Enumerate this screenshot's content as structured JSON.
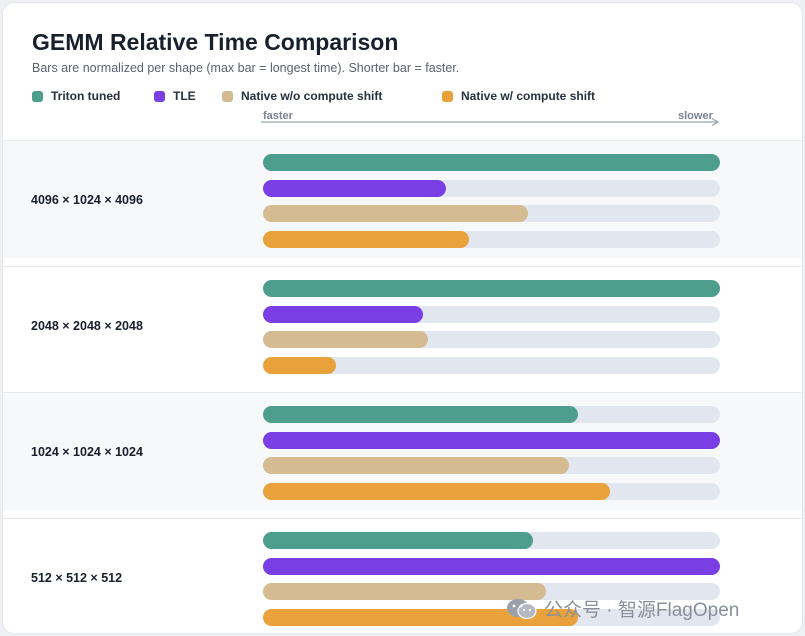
{
  "chart_data": {
    "type": "bar",
    "orientation": "horizontal",
    "title": "GEMM Relative Time Comparison",
    "subtitle": "Bars are normalized per shape (max bar = longest time). Shorter bar = faster.",
    "axis": {
      "left_label": "faster",
      "right_label": "slower"
    },
    "xlim": [
      0,
      1
    ],
    "legend_placement": "top-left",
    "categories": [
      "4096 × 1024 × 4096",
      "2048 × 2048 × 2048",
      "1024 × 1024 × 1024",
      "512 × 512 × 512"
    ],
    "series": [
      {
        "name": "Triton tuned",
        "color": "#4e9e8e",
        "values": [
          1.0,
          1.0,
          0.69,
          0.59
        ]
      },
      {
        "name": "TLE",
        "color": "#7a3fe4",
        "values": [
          0.4,
          0.35,
          1.0,
          1.0
        ]
      },
      {
        "name": "Native w/o compute shift",
        "color": "#d5bb92",
        "values": [
          0.58,
          0.36,
          0.67,
          0.62
        ]
      },
      {
        "name": "Native w/ compute shift",
        "color": "#e9a23b",
        "values": [
          0.45,
          0.16,
          0.76,
          0.69
        ]
      }
    ]
  },
  "watermark": {
    "text": "公众号 · 智源FlagOpen",
    "icon": "wechat-icon"
  }
}
